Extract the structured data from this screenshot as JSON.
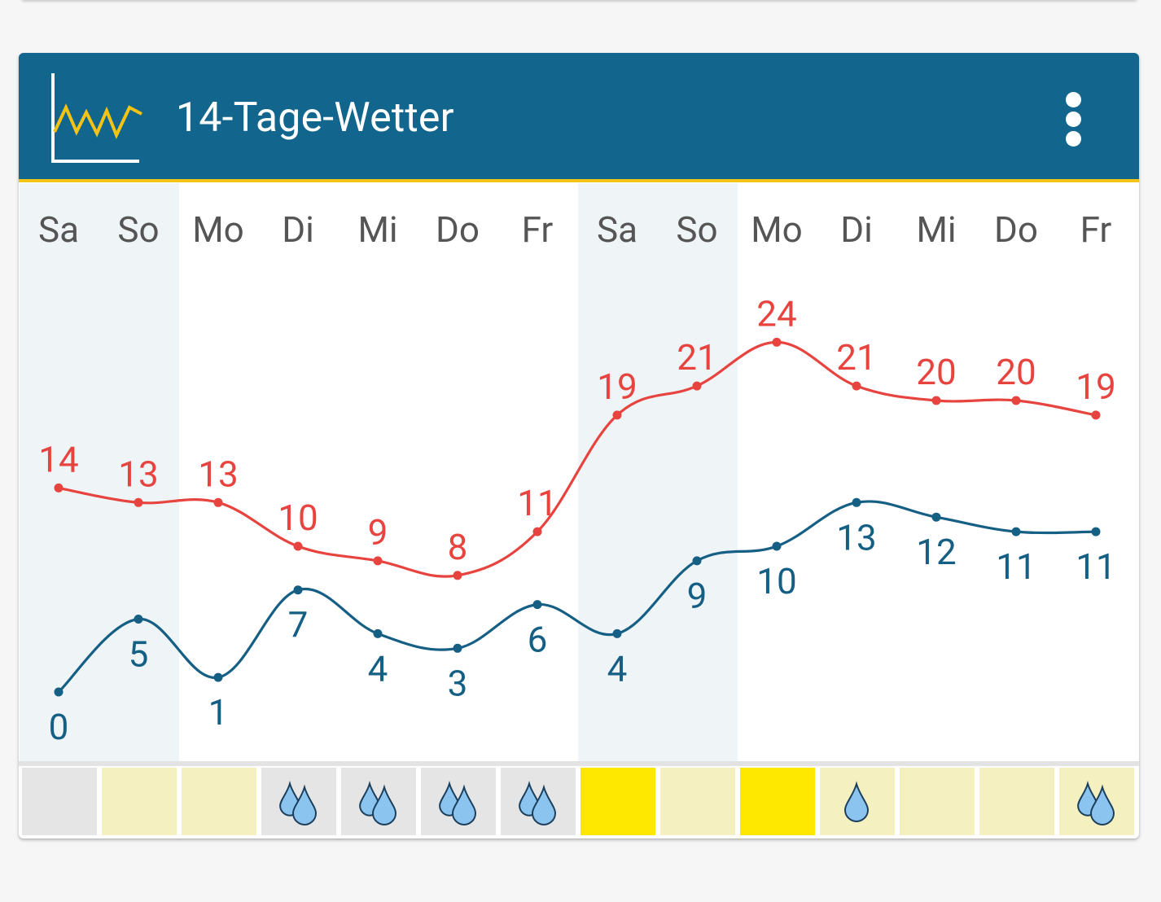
{
  "card": {
    "title": "14-Tage-Wetter",
    "logo_icon": "line-chart-icon",
    "menu_icon": "overflow-menu-icon"
  },
  "colors": {
    "header_bg": "#12658c",
    "header_accent": "#f3c316",
    "max_line": "#e8443f",
    "min_line": "#155f85",
    "weekend_bg": "#eff4f7",
    "day_label": "#555555"
  },
  "chart_data": {
    "type": "line",
    "categories": [
      "Sa",
      "So",
      "Mo",
      "Di",
      "Mi",
      "Do",
      "Fr",
      "Sa",
      "So",
      "Mo",
      "Di",
      "Mi",
      "Do",
      "Fr"
    ],
    "weekend_columns": [
      0,
      1,
      7,
      8
    ],
    "series": [
      {
        "values": [
          14,
          13,
          13,
          10,
          9,
          8,
          11,
          19,
          21,
          24,
          21,
          20,
          20,
          19
        ],
        "color": "#e8443f",
        "label_position": "above"
      },
      {
        "values": [
          0,
          5,
          1,
          7,
          4,
          3,
          6,
          4,
          9,
          10,
          13,
          12,
          11,
          11
        ],
        "color": "#155f85",
        "label_position": "below"
      }
    ],
    "ylim": [
      0,
      24
    ],
    "grid": false,
    "legend": "none",
    "weather_strip": [
      {
        "icon": "none",
        "color": "#e5e5e5"
      },
      {
        "icon": "none",
        "color": "#f5f0c0"
      },
      {
        "icon": "none",
        "color": "#f5f0c0"
      },
      {
        "icon": "rain-drops-icon",
        "color": "#e5e5e5"
      },
      {
        "icon": "rain-drops-icon",
        "color": "#e5e5e5"
      },
      {
        "icon": "rain-drops-icon",
        "color": "#e5e5e5"
      },
      {
        "icon": "rain-drops-icon",
        "color": "#e5e5e5"
      },
      {
        "icon": "none",
        "color": "#ffe800"
      },
      {
        "icon": "none",
        "color": "#f5f0c0"
      },
      {
        "icon": "none",
        "color": "#ffe800"
      },
      {
        "icon": "rain-drop-icon",
        "color": "#f5f0c0"
      },
      {
        "icon": "none",
        "color": "#f5f0c0"
      },
      {
        "icon": "none",
        "color": "#f5f0c0"
      },
      {
        "icon": "rain-drops-icon",
        "color": "#f5f0c0"
      }
    ]
  }
}
